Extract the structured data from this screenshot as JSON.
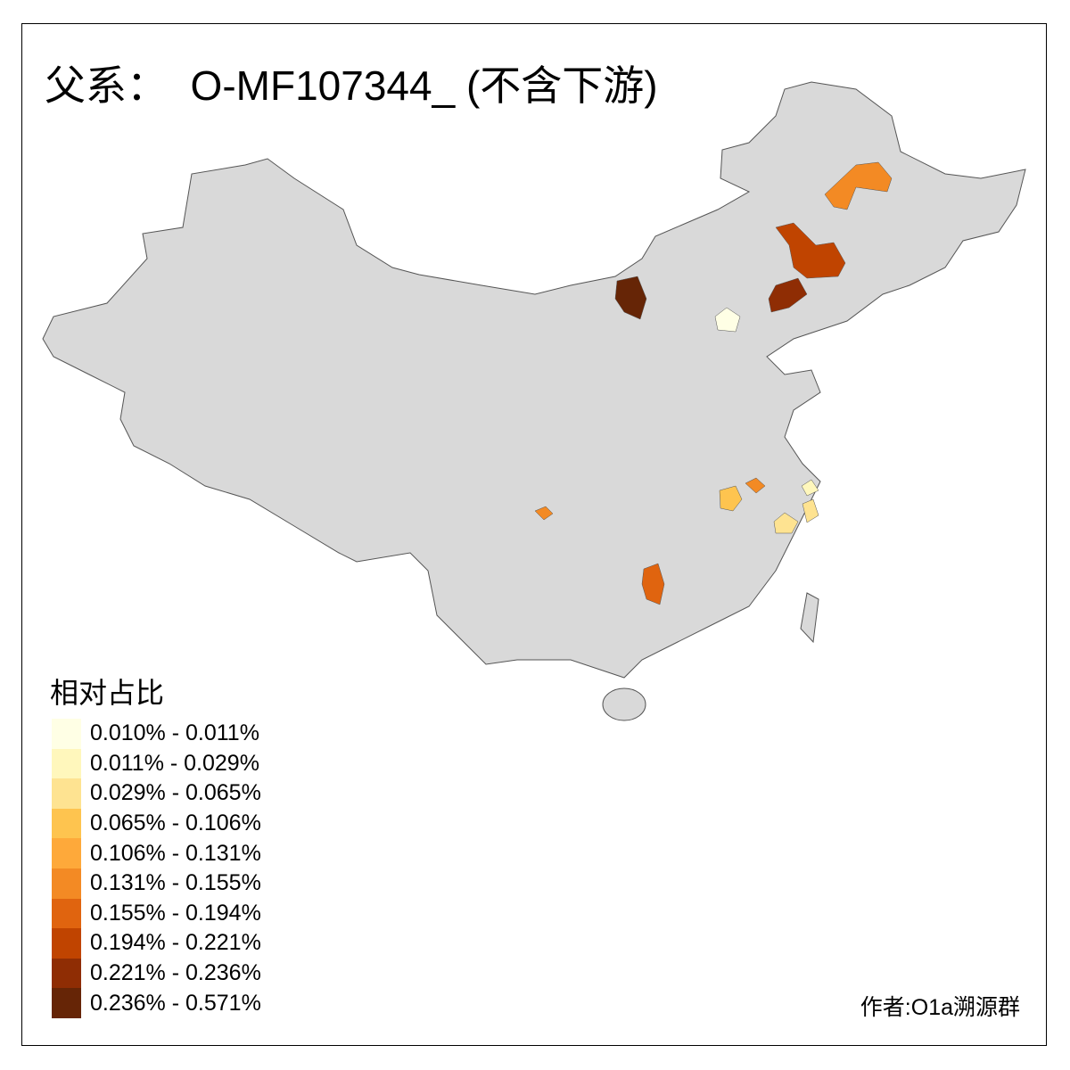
{
  "title": "父系：  O-MF107344_ (不含下游)",
  "legend": {
    "title": "相对占比",
    "items": [
      {
        "label": "0.010% - 0.011%",
        "color": "#FFFFE5"
      },
      {
        "label": "0.011% - 0.029%",
        "color": "#FFF7BC"
      },
      {
        "label": "0.029% - 0.065%",
        "color": "#FEE391"
      },
      {
        "label": "0.065% - 0.106%",
        "color": "#FEC44F"
      },
      {
        "label": "0.106% - 0.131%",
        "color": "#FEA93A"
      },
      {
        "label": "0.131% - 0.155%",
        "color": "#F38A24"
      },
      {
        "label": "0.155% - 0.194%",
        "color": "#E0640F"
      },
      {
        "label": "0.194% - 0.221%",
        "color": "#C04400"
      },
      {
        "label": "0.221% - 0.236%",
        "color": "#8F2D04"
      },
      {
        "label": "0.236% - 0.571%",
        "color": "#662506"
      }
    ]
  },
  "author": "作者:O1a溯源群",
  "map": {
    "base_color": "#D9D9D9",
    "border_color": "#555555"
  }
}
